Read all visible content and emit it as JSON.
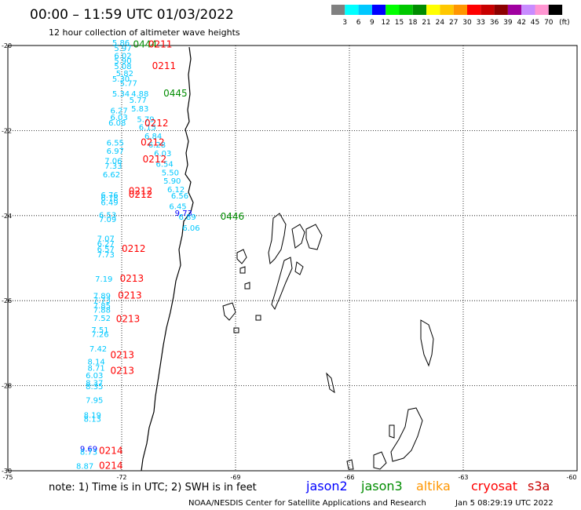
{
  "header": {
    "title": "00:00 – 11:59 UTC 01/03/2022",
    "subtitle": "12 hour collection of altimeter wave heights"
  },
  "legend": {
    "colors": [
      "#808080",
      "#00ffff",
      "#00c8ff",
      "#0000ff",
      "#00ff00",
      "#00c800",
      "#008c00",
      "#ffff00",
      "#ffc800",
      "#ff9600",
      "#ff0000",
      "#c80000",
      "#8c0000",
      "#a000a0",
      "#c88cff",
      "#ff96d2",
      "#000000"
    ],
    "labels": [
      "3",
      "6",
      "9",
      "12",
      "15",
      "18",
      "21",
      "24",
      "27",
      "30",
      "33",
      "36",
      "39",
      "42",
      "45",
      "70"
    ],
    "unit": "(ft)"
  },
  "axes": {
    "lat_labels": [
      "-20",
      "-22",
      "-24",
      "-26",
      "-28",
      "-30"
    ],
    "lon_labels": [
      "-75",
      "-72",
      "-69",
      "-66",
      "-63",
      "-60"
    ]
  },
  "footer": {
    "note": "note:  1) Time is in UTC;  2) SWH is in feet",
    "satellites": [
      {
        "name": "jason2",
        "color": "#0000ff"
      },
      {
        "name": "jason3",
        "color": "#008c00"
      },
      {
        "name": "altika",
        "color": "#ff9600"
      },
      {
        "name": "cryosat",
        "color": "#ff0000"
      },
      {
        "name": "s3a",
        "color": "#c80000"
      }
    ],
    "credit": "NOAA/NESDIS Center for Satellite Applications and Research",
    "timestamp": "Jan  5 08:29:19 UTC 2022"
  },
  "times": [
    {
      "label": "0444",
      "color": "#008c00",
      "lat": -20.05,
      "lon": -71.7
    },
    {
      "label": "0211",
      "color": "#ff0000",
      "lat": -20.05,
      "lon": -71.3
    },
    {
      "label": "0211",
      "color": "#ff0000",
      "lat": -20.55,
      "lon": -71.2
    },
    {
      "label": "0445",
      "color": "#008c00",
      "lat": -21.2,
      "lon": -70.9
    },
    {
      "label": "0212",
      "color": "#ff0000",
      "lat": -21.9,
      "lon": -71.4
    },
    {
      "label": "0212",
      "color": "#ff0000",
      "lat": -22.35,
      "lon": -71.5
    },
    {
      "label": "0212",
      "color": "#ff0000",
      "lat": -22.75,
      "lon": -71.45
    },
    {
      "label": "0212",
      "color": "#ff0000",
      "lat": -23.5,
      "lon": -71.82
    },
    {
      "label": "0212",
      "color": "#ff0000",
      "lat": -23.58,
      "lon": -71.82
    },
    {
      "label": "0446",
      "color": "#008c00",
      "lat": -24.1,
      "lon": -69.4
    },
    {
      "label": "0212",
      "color": "#ff0000",
      "lat": -24.85,
      "lon": -72.0
    },
    {
      "label": "0213",
      "color": "#ff0000",
      "lat": -25.55,
      "lon": -72.05
    },
    {
      "label": "0213",
      "color": "#ff0000",
      "lat": -25.95,
      "lon": -72.1
    },
    {
      "label": "0213",
      "color": "#ff0000",
      "lat": -26.5,
      "lon": -72.15
    },
    {
      "label": "0213",
      "color": "#ff0000",
      "lat": -27.35,
      "lon": -72.3
    },
    {
      "label": "0213",
      "color": "#ff0000",
      "lat": -27.72,
      "lon": -72.3
    },
    {
      "label": "0214",
      "color": "#ff0000",
      "lat": -29.6,
      "lon": -72.6
    },
    {
      "label": "0214",
      "color": "#ff0000",
      "lat": -29.95,
      "lon": -72.6
    }
  ],
  "wave_heights": [
    {
      "value": "5.86",
      "lat": -20.0,
      "lon": -72.25,
      "color": "#00c8ff"
    },
    {
      "value": "5.97",
      "lat": -20.13,
      "lon": -72.2,
      "color": "#00c8ff"
    },
    {
      "value": "6.02",
      "lat": -20.3,
      "lon": -72.2,
      "color": "#00c8ff"
    },
    {
      "value": "5.90",
      "lat": -20.42,
      "lon": -72.2,
      "color": "#00c8ff"
    },
    {
      "value": "5.08",
      "lat": -20.55,
      "lon": -72.2,
      "color": "#00c8ff"
    },
    {
      "value": "5.82",
      "lat": -20.72,
      "lon": -72.15,
      "color": "#00c8ff"
    },
    {
      "value": "5.30",
      "lat": -20.85,
      "lon": -72.25,
      "color": "#00c8ff"
    },
    {
      "value": "5.77",
      "lat": -20.95,
      "lon": -72.05,
      "color": "#00c8ff"
    },
    {
      "value": "5.34",
      "lat": -21.2,
      "lon": -72.25,
      "color": "#00c8ff"
    },
    {
      "value": "4.88",
      "lat": -21.2,
      "lon": -71.75,
      "color": "#00c8ff"
    },
    {
      "value": "5.77",
      "lat": -21.35,
      "lon": -71.8,
      "color": "#00c8ff"
    },
    {
      "value": "5.83",
      "lat": -21.55,
      "lon": -71.75,
      "color": "#00c8ff"
    },
    {
      "value": "6.27",
      "lat": -21.6,
      "lon": -72.3,
      "color": "#00c8ff"
    },
    {
      "value": "6.03",
      "lat": -21.75,
      "lon": -72.3,
      "color": "#00c8ff"
    },
    {
      "value": "6.08",
      "lat": -21.88,
      "lon": -72.35,
      "color": "#00c8ff"
    },
    {
      "value": "5.79",
      "lat": -21.8,
      "lon": -71.6,
      "color": "#00c8ff"
    },
    {
      "value": "6.15",
      "lat": -21.98,
      "lon": -71.55,
      "color": "#00c8ff"
    },
    {
      "value": "6.84",
      "lat": -22.2,
      "lon": -71.4,
      "color": "#00c8ff"
    },
    {
      "value": "6.55",
      "lat": -22.35,
      "lon": -72.4,
      "color": "#00c8ff"
    },
    {
      "value": "6.28",
      "lat": -22.4,
      "lon": -71.3,
      "color": "#00c8ff"
    },
    {
      "value": "6.97",
      "lat": -22.55,
      "lon": -72.4,
      "color": "#00c8ff"
    },
    {
      "value": "6.03",
      "lat": -22.6,
      "lon": -71.15,
      "color": "#00c8ff"
    },
    {
      "value": "7.06",
      "lat": -22.78,
      "lon": -72.45,
      "color": "#00c8ff"
    },
    {
      "value": "7.33",
      "lat": -22.9,
      "lon": -72.45,
      "color": "#00c8ff"
    },
    {
      "value": "6.54",
      "lat": -22.85,
      "lon": -71.1,
      "color": "#00c8ff"
    },
    {
      "value": "5.50",
      "lat": -23.05,
      "lon": -70.95,
      "color": "#00c8ff"
    },
    {
      "value": "6.62",
      "lat": -23.1,
      "lon": -72.5,
      "color": "#00c8ff"
    },
    {
      "value": "5.90",
      "lat": -23.25,
      "lon": -70.9,
      "color": "#00c8ff"
    },
    {
      "value": "6.12",
      "lat": -23.45,
      "lon": -70.8,
      "color": "#00c8ff"
    },
    {
      "value": "6.76",
      "lat": -23.58,
      "lon": -72.55,
      "color": "#00c8ff"
    },
    {
      "value": "6.78",
      "lat": -23.65,
      "lon": -72.55,
      "color": "#00c8ff"
    },
    {
      "value": "6.49",
      "lat": -23.75,
      "lon": -72.55,
      "color": "#00c8ff"
    },
    {
      "value": "6.56",
      "lat": -23.6,
      "lon": -70.7,
      "color": "#00c8ff"
    },
    {
      "value": "6.45",
      "lat": -23.85,
      "lon": -70.75,
      "color": "#00c8ff"
    },
    {
      "value": "9.73",
      "lat": -24.0,
      "lon": -70.6,
      "color": "#0000ff"
    },
    {
      "value": "6.53",
      "lat": -24.05,
      "lon": -72.6,
      "color": "#00c8ff"
    },
    {
      "value": "7.09",
      "lat": -24.15,
      "lon": -72.6,
      "color": "#00c8ff"
    },
    {
      "value": "6.89",
      "lat": -24.1,
      "lon": -70.5,
      "color": "#00c8ff"
    },
    {
      "value": "6.06",
      "lat": -24.35,
      "lon": -70.4,
      "color": "#00c8ff"
    },
    {
      "value": "7.07",
      "lat": -24.6,
      "lon": -72.65,
      "color": "#00c8ff"
    },
    {
      "value": "6.27",
      "lat": -24.72,
      "lon": -72.65,
      "color": "#00c8ff"
    },
    {
      "value": "6.57",
      "lat": -24.85,
      "lon": -72.65,
      "color": "#00c8ff"
    },
    {
      "value": "7.73",
      "lat": -24.98,
      "lon": -72.65,
      "color": "#00c8ff"
    },
    {
      "value": "7.19",
      "lat": -25.55,
      "lon": -72.7,
      "color": "#00c8ff"
    },
    {
      "value": "7.89",
      "lat": -25.95,
      "lon": -72.75,
      "color": "#00c8ff"
    },
    {
      "value": "7.73",
      "lat": -26.05,
      "lon": -72.75,
      "color": "#00c8ff"
    },
    {
      "value": "7.85",
      "lat": -26.18,
      "lon": -72.75,
      "color": "#00c8ff"
    },
    {
      "value": "7.88",
      "lat": -26.28,
      "lon": -72.75,
      "color": "#00c8ff"
    },
    {
      "value": "7.52",
      "lat": -26.48,
      "lon": -72.75,
      "color": "#00c8ff"
    },
    {
      "value": "7.51",
      "lat": -26.75,
      "lon": -72.8,
      "color": "#00c8ff"
    },
    {
      "value": "7.26",
      "lat": -26.85,
      "lon": -72.8,
      "color": "#00c8ff"
    },
    {
      "value": "7.42",
      "lat": -27.2,
      "lon": -72.85,
      "color": "#00c8ff"
    },
    {
      "value": "8.14",
      "lat": -27.5,
      "lon": -72.9,
      "color": "#00c8ff"
    },
    {
      "value": "8.71",
      "lat": -27.65,
      "lon": -72.9,
      "color": "#00c8ff"
    },
    {
      "value": "6.03",
      "lat": -27.82,
      "lon": -72.95,
      "color": "#00c8ff"
    },
    {
      "value": "8.37",
      "lat": -28.0,
      "lon": -72.95,
      "color": "#00c8ff"
    },
    {
      "value": "8.35",
      "lat": -28.08,
      "lon": -72.95,
      "color": "#00c8ff"
    },
    {
      "value": "7.95",
      "lat": -28.4,
      "lon": -72.95,
      "color": "#00c8ff"
    },
    {
      "value": "8.19",
      "lat": -28.75,
      "lon": -73.0,
      "color": "#00c8ff"
    },
    {
      "value": "8.13",
      "lat": -28.85,
      "lon": -73.0,
      "color": "#00c8ff"
    },
    {
      "value": "9.69",
      "lat": -29.55,
      "lon": -73.1,
      "color": "#0000ff"
    },
    {
      "value": "8.73",
      "lat": -29.62,
      "lon": -73.1,
      "color": "#00c8ff"
    },
    {
      "value": "8.87",
      "lat": -29.95,
      "lon": -73.2,
      "color": "#00c8ff"
    }
  ]
}
